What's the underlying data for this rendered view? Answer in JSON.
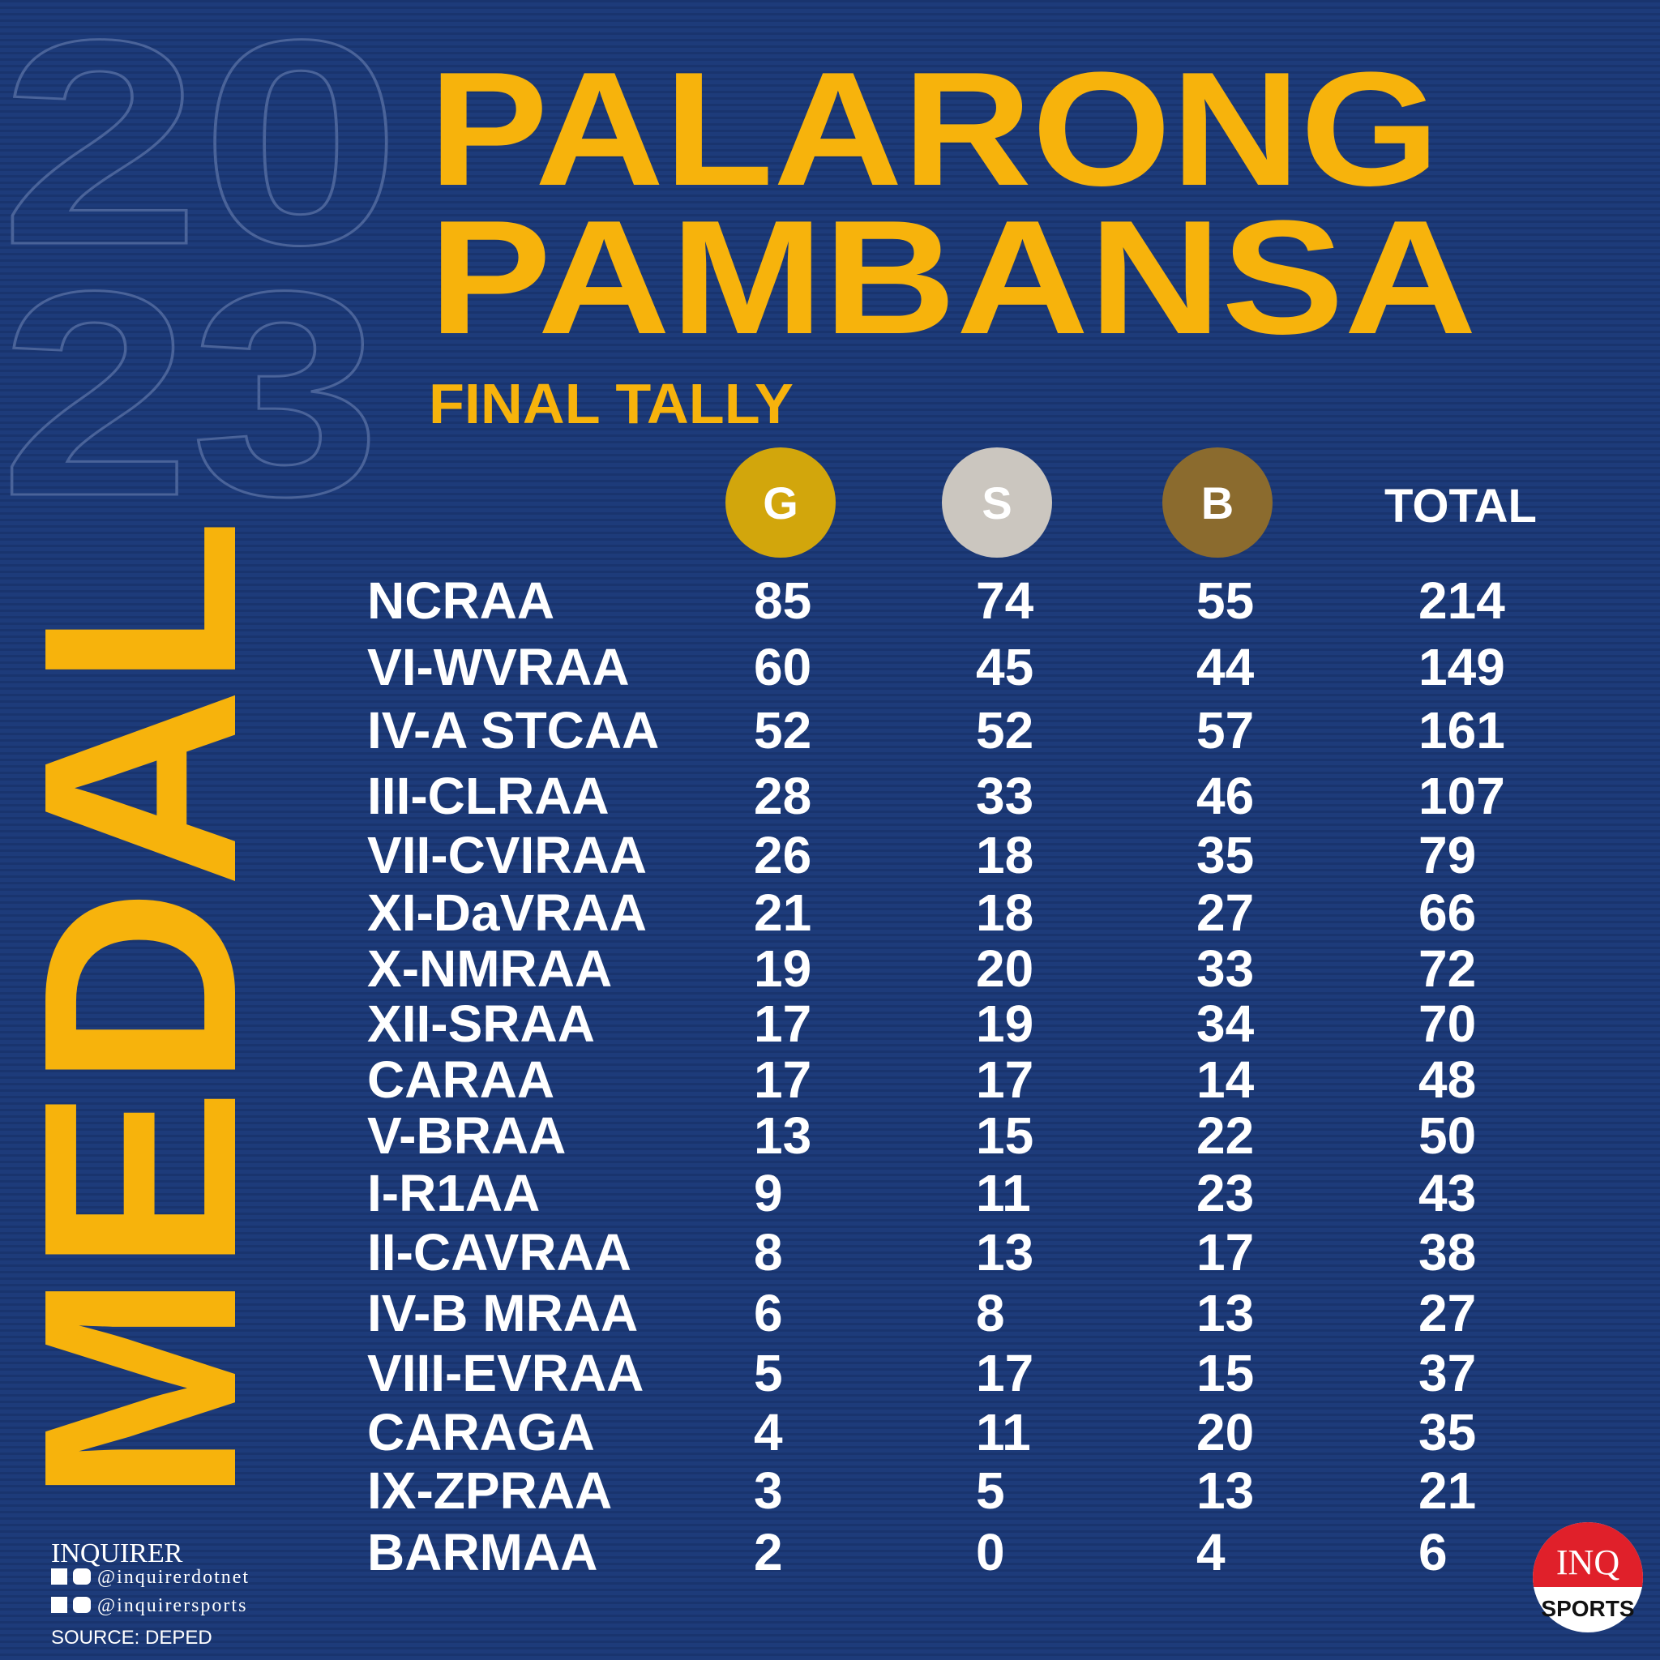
{
  "background_year": [
    "20",
    "23"
  ],
  "header": {
    "title_lines": [
      "PALARONG",
      "PAMBANSA"
    ],
    "side_title": "MEDAL",
    "subtitle": "FINAL TALLY"
  },
  "table": {
    "columns": [
      "G",
      "S",
      "B",
      "TOTAL"
    ],
    "rows": [
      [
        "NCRAA",
        "85",
        "74",
        "55",
        "214"
      ],
      [
        "VI-WVRAA",
        "60",
        "45",
        "44",
        "149"
      ],
      [
        "IV-A STCAA",
        "52",
        "52",
        "57",
        "161"
      ],
      [
        "III-CLRAA",
        "28",
        "33",
        "46",
        "107"
      ],
      [
        "VII-CVIRAA",
        "26",
        "18",
        "35",
        "79"
      ],
      [
        "XI-DaVRAA",
        "21",
        "18",
        "27",
        "66"
      ],
      [
        "X-NMRAA",
        "19",
        "20",
        "33",
        "72"
      ],
      [
        "XII-SRAA",
        "17",
        "19",
        "34",
        "70"
      ],
      [
        "CARAA",
        "17",
        "17",
        "14",
        "48"
      ],
      [
        "V-BRAA",
        "13",
        "15",
        "22",
        "50"
      ],
      [
        "I-R1AA",
        "9",
        "11",
        "23",
        "43"
      ],
      [
        "II-CAVRAA",
        "8",
        "13",
        "17",
        "38"
      ],
      [
        "IV-B MRAA",
        "6",
        "8",
        "13",
        "27"
      ],
      [
        "VIII-EVRAA",
        "5",
        "17",
        "15",
        "37"
      ],
      [
        "CARAGA",
        "4",
        "11",
        "20",
        "35"
      ],
      [
        "IX-ZPRAA",
        "3",
        "5",
        "13",
        "21"
      ],
      [
        "BARMAA",
        "2",
        "0",
        "4",
        "6"
      ]
    ]
  },
  "footer": {
    "brand": "INQUIRER",
    "handles": [
      "@inquirerdotnet",
      "@inquirersports"
    ],
    "source": "SOURCE: DEPED"
  },
  "logo": {
    "top": "INQ",
    "bottom": "SPORTS"
  }
}
